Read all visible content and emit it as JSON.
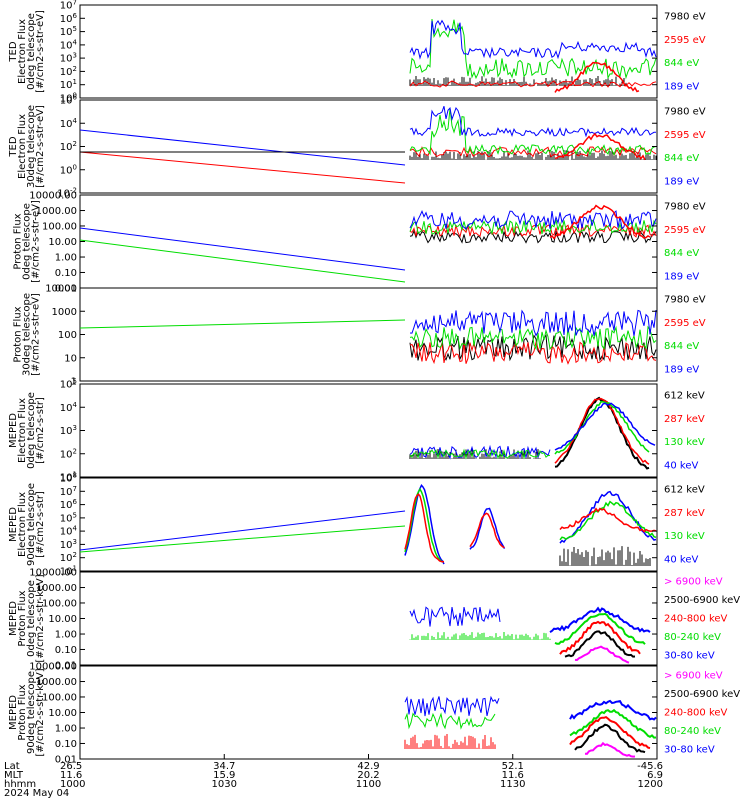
{
  "colors": {
    "black": "#000000",
    "red": "#ff0000",
    "green": "#00dd00",
    "blue": "#0000ff",
    "magenta": "#ff00ff"
  },
  "chart_data": {
    "type": "line",
    "x_ticks": {
      "lat": [
        "26.5",
        "34.7",
        "42.9",
        "52.1",
        "-45.6"
      ],
      "mlt": [
        "11.6",
        "15.9",
        "20.2",
        "11.6",
        "6.9"
      ],
      "hhmm": [
        "1000",
        "1030",
        "1100",
        "1130",
        "1200"
      ]
    },
    "x_row_labels": {
      "lat": "Lat",
      "mlt": "MLT",
      "hhmm": "hhmm"
    },
    "date_label": "2024 May 04",
    "panels": [
      {
        "ylabel": [
          "TED",
          "Electron Flux",
          "0deg telescope",
          "[#/cm2-s-str-eV]"
        ],
        "y_ticks": [
          {
            "label": "10^0",
            "p": 1.0
          },
          {
            "label": "10^1",
            "p": 0.857
          },
          {
            "label": "10^2",
            "p": 0.714
          },
          {
            "label": "10^3",
            "p": 0.571
          },
          {
            "label": "10^4",
            "p": 0.429
          },
          {
            "label": "10^5",
            "p": 0.286
          },
          {
            "label": "10^6",
            "p": 0.143
          },
          {
            "label": "10^7",
            "p": 0.0
          }
        ],
        "legend": [
          {
            "text": "7980 eV",
            "color": "#000000"
          },
          {
            "text": "2595 eV",
            "color": "#ff0000"
          },
          {
            "text": "844 eV",
            "color": "#00dd00"
          },
          {
            "text": "189 eV",
            "color": "#0000ff"
          }
        ]
      },
      {
        "ylabel": [
          "TED",
          "Electron Flux",
          "30deg telescope",
          "[#/cm2-s-str-eV]"
        ],
        "y_ticks": [
          {
            "label": "10^-2",
            "p": 1.0
          },
          {
            "label": "10^0",
            "p": 0.75
          },
          {
            "label": "10^2",
            "p": 0.5
          },
          {
            "label": "10^4",
            "p": 0.25
          },
          {
            "label": "10^6",
            "p": 0.0
          }
        ],
        "legend": [
          {
            "text": "7980 eV",
            "color": "#000000"
          },
          {
            "text": "2595 eV",
            "color": "#ff0000"
          },
          {
            "text": "844 eV",
            "color": "#00dd00"
          },
          {
            "text": "189 eV",
            "color": "#0000ff"
          }
        ]
      },
      {
        "ylabel": [
          "Proton Flux",
          "0deg telescope",
          "[#/cm2-s-str-eV]"
        ],
        "y_ticks": [
          {
            "label": "0.01",
            "p": 1.0
          },
          {
            "label": "0.10",
            "p": 0.833
          },
          {
            "label": "1.00",
            "p": 0.667
          },
          {
            "label": "10.00",
            "p": 0.5
          },
          {
            "label": "100.00",
            "p": 0.333
          },
          {
            "label": "1000.00",
            "p": 0.167
          },
          {
            "label": "10000.00",
            "p": 0.0
          }
        ],
        "legend": [
          {
            "text": "7980 eV",
            "color": "#000000"
          },
          {
            "text": "2595 eV",
            "color": "#ff0000"
          },
          {
            "text": "844 eV",
            "color": "#00dd00"
          },
          {
            "text": "189 eV",
            "color": "#0000ff"
          }
        ]
      },
      {
        "ylabel": [
          "Proton Flux",
          "30deg telescope",
          "[#/cm2-s-str-eV]"
        ],
        "y_ticks": [
          {
            "label": "1",
            "p": 1.0
          },
          {
            "label": "10",
            "p": 0.75
          },
          {
            "label": "100",
            "p": 0.5
          },
          {
            "label": "1000",
            "p": 0.25
          },
          {
            "label": "10000",
            "p": 0.0
          }
        ],
        "legend": [
          {
            "text": "7980 eV",
            "color": "#000000"
          },
          {
            "text": "2595 eV",
            "color": "#ff0000"
          },
          {
            "text": "844 eV",
            "color": "#00dd00"
          },
          {
            "text": "189 eV",
            "color": "#0000ff"
          }
        ]
      },
      {
        "ylabel": [
          "MEPED",
          "Electron Flux",
          "0deg telescope",
          "[#/cm2-s-str]"
        ],
        "y_ticks": [
          {
            "label": "10^1",
            "p": 1.0
          },
          {
            "label": "10^2",
            "p": 0.75
          },
          {
            "label": "10^3",
            "p": 0.5
          },
          {
            "label": "10^4",
            "p": 0.25
          },
          {
            "label": "10^5",
            "p": 0.0
          }
        ],
        "legend": [
          {
            "text": "612 keV",
            "color": "#000000"
          },
          {
            "text": "287 keV",
            "color": "#ff0000"
          },
          {
            "text": "130 keV",
            "color": "#00dd00"
          },
          {
            "text": "40 keV",
            "color": "#0000ff"
          }
        ]
      },
      {
        "ylabel": [
          "MEPED",
          "Electron Flux",
          "90deg telescope",
          "[#/cm2-s-str]"
        ],
        "y_ticks": [
          {
            "label": "10^1",
            "p": 1.0
          },
          {
            "label": "10^2",
            "p": 0.857
          },
          {
            "label": "10^3",
            "p": 0.714
          },
          {
            "label": "10^4",
            "p": 0.571
          },
          {
            "label": "10^5",
            "p": 0.429
          },
          {
            "label": "10^6",
            "p": 0.286
          },
          {
            "label": "10^7",
            "p": 0.143
          },
          {
            "label": "10^8",
            "p": 0.0
          }
        ],
        "legend": [
          {
            "text": "612 keV",
            "color": "#000000"
          },
          {
            "text": "287 keV",
            "color": "#ff0000"
          },
          {
            "text": "130 keV",
            "color": "#00dd00"
          },
          {
            "text": "40 keV",
            "color": "#0000ff"
          }
        ]
      },
      {
        "ylabel": [
          "MEPED",
          "Proton Flux",
          "0deg telescope",
          "[#/cm2-s-str-keV]"
        ],
        "y_ticks": [
          {
            "label": "0.01",
            "p": 1.0
          },
          {
            "label": "0.10",
            "p": 0.833
          },
          {
            "label": "1.00",
            "p": 0.667
          },
          {
            "label": "10.00",
            "p": 0.5
          },
          {
            "label": "100.00",
            "p": 0.333
          },
          {
            "label": "1000.00",
            "p": 0.167
          },
          {
            "label": "10000.00",
            "p": 0.0
          }
        ],
        "legend": [
          {
            "text": "> 6900 keV",
            "color": "#ff00ff"
          },
          {
            "text": "2500-6900 keV",
            "color": "#000000"
          },
          {
            "text": "240-800 keV",
            "color": "#ff0000"
          },
          {
            "text": "80-240 keV",
            "color": "#00dd00"
          },
          {
            "text": "30-80 keV",
            "color": "#0000ff"
          }
        ]
      },
      {
        "ylabel": [
          "MEPED",
          "Proton Flux",
          "90deg telescope",
          "[#/cm2-s-str-keV]"
        ],
        "y_ticks": [
          {
            "label": "0.01",
            "p": 1.0
          },
          {
            "label": "0.10",
            "p": 0.833
          },
          {
            "label": "1.00",
            "p": 0.667
          },
          {
            "label": "10.00",
            "p": 0.5
          },
          {
            "label": "100.00",
            "p": 0.333
          },
          {
            "label": "1000.00",
            "p": 0.167
          },
          {
            "label": "10000.00",
            "p": 0.0
          }
        ],
        "legend": [
          {
            "text": "> 6900 keV",
            "color": "#ff00ff"
          },
          {
            "text": "2500-6900 keV",
            "color": "#000000"
          },
          {
            "text": "240-800 keV",
            "color": "#ff0000"
          },
          {
            "text": "80-240 keV",
            "color": "#00dd00"
          },
          {
            "text": "30-80 keV",
            "color": "#0000ff"
          }
        ]
      }
    ]
  }
}
